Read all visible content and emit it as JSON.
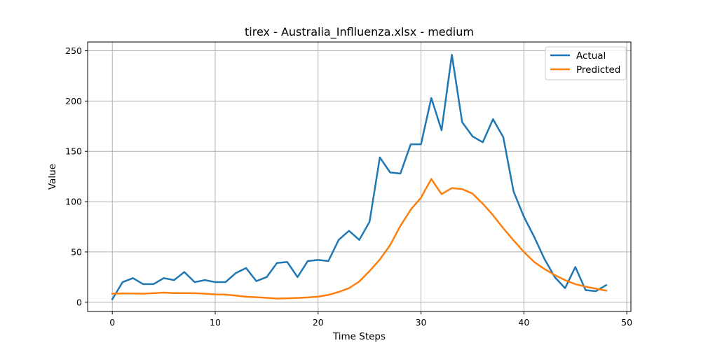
{
  "chart_data": {
    "type": "line",
    "title": "tirex - Australia_Inflluenza.xlsx - medium",
    "xlabel": "Time Steps",
    "ylabel": "Value",
    "xlim": [
      -2.4,
      50.4
    ],
    "ylim": [
      -9.2,
      258.7
    ],
    "xticks": [
      0,
      10,
      20,
      30,
      40,
      50
    ],
    "yticks": [
      0,
      50,
      100,
      150,
      200,
      250
    ],
    "grid": true,
    "legend": "top-right",
    "x": [
      0,
      1,
      2,
      3,
      4,
      5,
      6,
      7,
      8,
      9,
      10,
      11,
      12,
      13,
      14,
      15,
      16,
      17,
      18,
      19,
      20,
      21,
      22,
      23,
      24,
      25,
      26,
      27,
      28,
      29,
      30,
      31,
      32,
      33,
      34,
      35,
      36,
      37,
      38,
      39,
      40,
      41,
      42,
      43,
      44,
      45,
      46,
      47,
      48
    ],
    "series": [
      {
        "name": "Actual",
        "color": "#1f77b4",
        "values": [
          3,
          20,
          24,
          18,
          18,
          24,
          22,
          30,
          20,
          22,
          20,
          20,
          29,
          34,
          21,
          25,
          39,
          40,
          25,
          41,
          42,
          41,
          62,
          71,
          62,
          80,
          144,
          129,
          128,
          157,
          157,
          203,
          171,
          246,
          179,
          165,
          159,
          182,
          164,
          110,
          85,
          65,
          43,
          25,
          14,
          35,
          12,
          11,
          17
        ]
      },
      {
        "name": "Predicted",
        "color": "#ff7f0e",
        "values": [
          8.5,
          8.8,
          8.7,
          8.5,
          9,
          9.6,
          9.1,
          9.1,
          9,
          8.5,
          7.8,
          7.6,
          6.6,
          5.5,
          5,
          4.4,
          3.7,
          3.9,
          4.3,
          4.8,
          5.6,
          7.3,
          10.2,
          14,
          20.6,
          31,
          42.5,
          56.8,
          76,
          92,
          104,
          122.5,
          107.5,
          113.5,
          112.5,
          108,
          98,
          86.5,
          73.5,
          61.5,
          50,
          40,
          33,
          27,
          22,
          18,
          15.5,
          13.5,
          11.5
        ]
      }
    ]
  }
}
